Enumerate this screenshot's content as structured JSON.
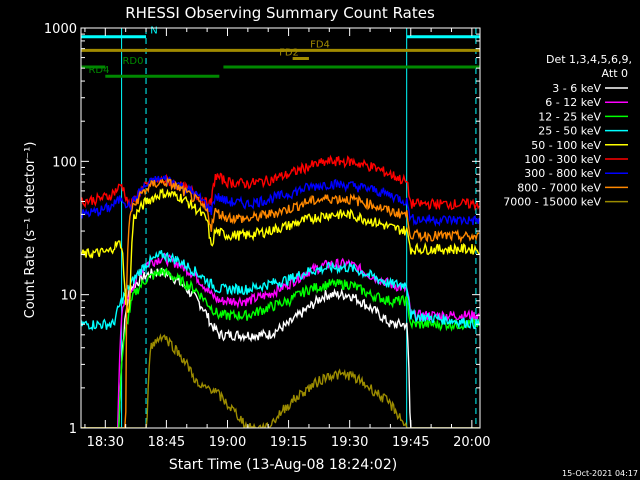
{
  "chart_data": {
    "type": "line",
    "title": "RHESSI Observing Summary Count Rates",
    "xlabel": "Start Time (13-Aug-08 18:24:02)",
    "ylabel": "Count Rate (s⁻¹ detector⁻¹)",
    "y_scale": "log",
    "ylim": [
      1,
      1000
    ],
    "xlim": [
      "18:24:02",
      "20:02:00"
    ],
    "x_ticks": [
      "18:30",
      "18:45",
      "19:00",
      "19:15",
      "19:30",
      "19:45",
      "20:00"
    ],
    "y_ticks": [
      "1",
      "10",
      "100",
      "1000"
    ],
    "detectors": "Det 1,3,4,5,6,9,",
    "attenuator": "Att 0",
    "footer_date": "15-Oct-2021 04:17",
    "legend_position": "right",
    "series": [
      {
        "name": "3 - 6 keV",
        "color": "#ffffff",
        "points": [
          [
            "18:24",
            0
          ],
          [
            "18:33",
            0
          ],
          [
            "18:34",
            3
          ],
          [
            "18:36",
            11
          ],
          [
            "18:40",
            14
          ],
          [
            "18:43",
            15
          ],
          [
            "18:46",
            14
          ],
          [
            "18:50",
            11
          ],
          [
            "18:54",
            8
          ],
          [
            "18:56",
            6
          ],
          [
            "18:58",
            5
          ],
          [
            "19:00",
            5
          ],
          [
            "19:05",
            5
          ],
          [
            "19:10",
            5
          ],
          [
            "19:15",
            6
          ],
          [
            "19:20",
            8
          ],
          [
            "19:24",
            10
          ],
          [
            "19:30",
            10
          ],
          [
            "19:35",
            8
          ],
          [
            "19:40",
            6
          ],
          [
            "19:44",
            6
          ],
          [
            "19:45",
            0
          ],
          [
            "20:02",
            0
          ]
        ]
      },
      {
        "name": "6 - 12 keV",
        "color": "#ff00ff",
        "points": [
          [
            "18:24",
            0
          ],
          [
            "18:33",
            0
          ],
          [
            "18:34",
            7
          ],
          [
            "18:37",
            12
          ],
          [
            "18:40",
            17
          ],
          [
            "18:44",
            19
          ],
          [
            "18:48",
            17
          ],
          [
            "18:52",
            14
          ],
          [
            "18:56",
            10
          ],
          [
            "18:58",
            9
          ],
          [
            "19:00",
            9
          ],
          [
            "19:05",
            9
          ],
          [
            "19:10",
            10
          ],
          [
            "19:15",
            12
          ],
          [
            "19:20",
            15
          ],
          [
            "19:25",
            17
          ],
          [
            "19:30",
            17
          ],
          [
            "19:35",
            14
          ],
          [
            "19:40",
            12
          ],
          [
            "19:44",
            11
          ],
          [
            "19:45",
            7
          ],
          [
            "20:02",
            7
          ]
        ]
      },
      {
        "name": "12 - 25 keV",
        "color": "#00ff00",
        "points": [
          [
            "18:24",
            0
          ],
          [
            "18:33",
            0
          ],
          [
            "18:34",
            3
          ],
          [
            "18:37",
            10
          ],
          [
            "18:40",
            13
          ],
          [
            "18:44",
            15
          ],
          [
            "18:48",
            13
          ],
          [
            "18:52",
            11
          ],
          [
            "18:56",
            8
          ],
          [
            "18:58",
            7
          ],
          [
            "19:00",
            7
          ],
          [
            "19:05",
            7
          ],
          [
            "19:10",
            8
          ],
          [
            "19:15",
            9
          ],
          [
            "19:20",
            11
          ],
          [
            "19:25",
            12
          ],
          [
            "19:30",
            12
          ],
          [
            "19:35",
            10
          ],
          [
            "19:40",
            9
          ],
          [
            "19:44",
            9
          ],
          [
            "19:45",
            6
          ],
          [
            "20:02",
            6
          ]
        ]
      },
      {
        "name": "25 - 50 keV",
        "color": "#00ffff",
        "points": [
          [
            "18:24",
            6
          ],
          [
            "18:32",
            6
          ],
          [
            "18:34",
            9
          ],
          [
            "18:37",
            13
          ],
          [
            "18:40",
            17
          ],
          [
            "18:44",
            20
          ],
          [
            "18:48",
            18
          ],
          [
            "18:52",
            15
          ],
          [
            "18:56",
            12
          ],
          [
            "18:58",
            11
          ],
          [
            "19:00",
            11
          ],
          [
            "19:05",
            11
          ],
          [
            "19:10",
            12
          ],
          [
            "19:15",
            13
          ],
          [
            "19:20",
            15
          ],
          [
            "19:25",
            16
          ],
          [
            "19:30",
            16
          ],
          [
            "19:35",
            14
          ],
          [
            "19:40",
            12
          ],
          [
            "19:44",
            12
          ],
          [
            "19:45",
            7
          ],
          [
            "20:02",
            6
          ]
        ]
      },
      {
        "name": "50 - 100 keV",
        "color": "#ffff00",
        "points": [
          [
            "18:24",
            20
          ],
          [
            "18:31",
            21
          ],
          [
            "18:32",
            23
          ],
          [
            "18:33",
            24
          ],
          [
            "18:34",
            24
          ],
          [
            "18:35",
            8
          ],
          [
            "18:36",
            8
          ],
          [
            "18:37",
            38
          ],
          [
            "18:40",
            50
          ],
          [
            "18:44",
            58
          ],
          [
            "18:48",
            55
          ],
          [
            "18:52",
            45
          ],
          [
            "18:55",
            36
          ],
          [
            "18:56",
            22
          ],
          [
            "18:57",
            30
          ],
          [
            "19:00",
            28
          ],
          [
            "19:05",
            28
          ],
          [
            "19:10",
            30
          ],
          [
            "19:15",
            33
          ],
          [
            "19:20",
            37
          ],
          [
            "19:25",
            40
          ],
          [
            "19:30",
            40
          ],
          [
            "19:35",
            36
          ],
          [
            "19:40",
            32
          ],
          [
            "19:44",
            30
          ],
          [
            "19:45",
            22
          ],
          [
            "20:02",
            22
          ]
        ]
      },
      {
        "name": "100 - 300 keV",
        "color": "#ff0000",
        "points": [
          [
            "18:24",
            50
          ],
          [
            "18:28",
            52
          ],
          [
            "18:31",
            55
          ],
          [
            "18:33",
            62
          ],
          [
            "18:34",
            67
          ],
          [
            "18:36",
            45
          ],
          [
            "18:39",
            62
          ],
          [
            "18:42",
            70
          ],
          [
            "18:45",
            72
          ],
          [
            "18:48",
            66
          ],
          [
            "18:52",
            58
          ],
          [
            "18:55",
            48
          ],
          [
            "18:56",
            48
          ],
          [
            "18:57",
            78
          ],
          [
            "19:00",
            70
          ],
          [
            "19:05",
            68
          ],
          [
            "19:10",
            72
          ],
          [
            "19:15",
            80
          ],
          [
            "19:20",
            92
          ],
          [
            "19:25",
            100
          ],
          [
            "19:30",
            100
          ],
          [
            "19:35",
            92
          ],
          [
            "19:40",
            80
          ],
          [
            "19:44",
            70
          ],
          [
            "19:45",
            48
          ],
          [
            "20:02",
            48
          ]
        ]
      },
      {
        "name": "300 - 800 keV",
        "color": "#0000ff",
        "points": [
          [
            "18:24",
            40
          ],
          [
            "18:28",
            42
          ],
          [
            "18:31",
            45
          ],
          [
            "18:33",
            50
          ],
          [
            "18:34",
            54
          ],
          [
            "18:36",
            45
          ],
          [
            "18:39",
            62
          ],
          [
            "18:42",
            72
          ],
          [
            "18:45",
            74
          ],
          [
            "18:48",
            67
          ],
          [
            "18:52",
            57
          ],
          [
            "18:55",
            47
          ],
          [
            "18:56",
            42
          ],
          [
            "18:57",
            55
          ],
          [
            "19:00",
            50
          ],
          [
            "19:05",
            48
          ],
          [
            "19:10",
            52
          ],
          [
            "19:15",
            57
          ],
          [
            "19:20",
            64
          ],
          [
            "19:25",
            68
          ],
          [
            "19:30",
            66
          ],
          [
            "19:35",
            62
          ],
          [
            "19:40",
            56
          ],
          [
            "19:44",
            50
          ],
          [
            "19:45",
            37
          ],
          [
            "20:02",
            36
          ]
        ]
      },
      {
        "name": "800 - 7000 keV",
        "color": "#ff8800",
        "points": [
          [
            "18:24",
            0
          ],
          [
            "18:35",
            0
          ],
          [
            "18:36",
            40
          ],
          [
            "18:39",
            58
          ],
          [
            "18:42",
            68
          ],
          [
            "18:45",
            70
          ],
          [
            "18:48",
            63
          ],
          [
            "18:52",
            52
          ],
          [
            "18:55",
            42
          ],
          [
            "18:56",
            32
          ],
          [
            "18:57",
            42
          ],
          [
            "19:00",
            38
          ],
          [
            "19:05",
            37
          ],
          [
            "19:10",
            40
          ],
          [
            "19:15",
            44
          ],
          [
            "19:20",
            50
          ],
          [
            "19:25",
            53
          ],
          [
            "19:30",
            52
          ],
          [
            "19:35",
            48
          ],
          [
            "19:40",
            42
          ],
          [
            "19:44",
            40
          ],
          [
            "19:45",
            28
          ],
          [
            "20:02",
            27
          ]
        ]
      },
      {
        "name": "7000 - 15000 keV",
        "color": "#9b8b00",
        "points": [
          [
            "18:24",
            0
          ],
          [
            "18:40",
            0
          ],
          [
            "18:41",
            4
          ],
          [
            "18:44",
            5
          ],
          [
            "18:47",
            4
          ],
          [
            "18:50",
            3
          ],
          [
            "18:53",
            2
          ],
          [
            "18:56",
            2
          ],
          [
            "19:00",
            1.5
          ],
          [
            "19:05",
            1
          ],
          [
            "19:10",
            1
          ],
          [
            "19:15",
            1.5
          ],
          [
            "19:20",
            2
          ],
          [
            "19:25",
            2.5
          ],
          [
            "19:30",
            2.5
          ],
          [
            "19:35",
            2
          ],
          [
            "19:40",
            1.5
          ],
          [
            "19:44",
            1
          ],
          [
            "19:45",
            0
          ],
          [
            "20:02",
            0
          ]
        ]
      }
    ],
    "state_bars": [
      {
        "label": "N",
        "color": "#00ffff",
        "segments": [
          [
            "18:24",
            "18:40"
          ],
          [
            "19:44",
            "20:02"
          ]
        ],
        "level": 860
      },
      {
        "label": "FD4",
        "color": "#a08a00",
        "segments": [
          [
            "18:24",
            "20:02"
          ]
        ],
        "level": 680
      },
      {
        "label": "FD2",
        "color": "#a08a00",
        "segments": [
          [
            "19:16",
            "19:20"
          ]
        ],
        "level": 590
      },
      {
        "label": "RD0",
        "color": "#008800",
        "segments": [
          [
            "18:24",
            "18:30"
          ],
          [
            "18:59",
            "20:02"
          ]
        ],
        "level": 510
      },
      {
        "label": "RD4",
        "color": "#008800",
        "segments": [
          [
            "18:30",
            "18:58"
          ]
        ],
        "level": 435
      }
    ],
    "vertical_lines": [
      {
        "color": "#00ffff",
        "style": "dashed",
        "x": "18:40"
      },
      {
        "color": "#00ffff",
        "style": "dashed",
        "x": "20:01"
      },
      {
        "color": "#00ffff",
        "style": "solid",
        "x": "18:34"
      },
      {
        "color": "#00ffff",
        "style": "solid",
        "x": "19:44"
      }
    ]
  }
}
